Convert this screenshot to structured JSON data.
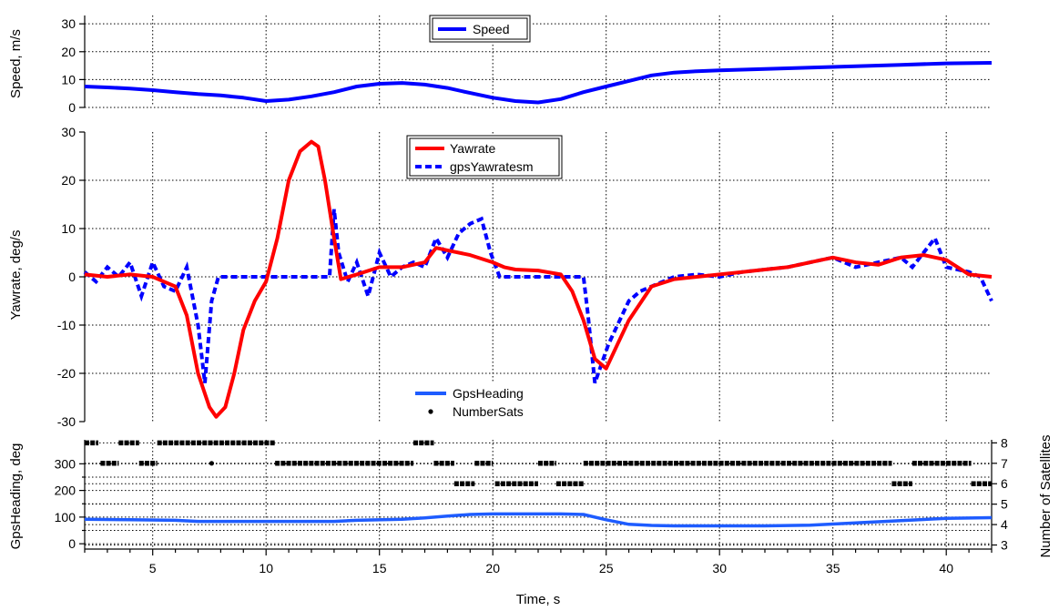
{
  "chart_data": [
    {
      "type": "line",
      "panel": "speed",
      "ylabel": "Speed, m/s",
      "ylim": [
        0,
        33
      ],
      "yticks": [
        0,
        10,
        20,
        30
      ],
      "grid": true,
      "legend_placement": "top-center",
      "series": [
        {
          "name": "Speed",
          "color": "#0000ff",
          "style": "solid",
          "x": [
            2,
            3,
            4,
            5,
            6,
            7,
            8,
            9,
            10,
            11,
            12,
            13,
            14,
            15,
            16,
            17,
            18,
            19,
            20,
            21,
            22,
            23,
            24,
            25,
            26,
            27,
            28,
            29,
            30,
            32,
            34,
            36,
            38,
            40,
            42
          ],
          "y": [
            7.5,
            7.2,
            6.8,
            6.2,
            5.5,
            4.8,
            4.3,
            3.5,
            2.3,
            2.8,
            4,
            5.5,
            7.5,
            8.5,
            8.8,
            8.2,
            7,
            5.2,
            3.5,
            2.3,
            1.8,
            3,
            5.5,
            7.5,
            9.5,
            11.5,
            12.5,
            13,
            13.3,
            13.8,
            14.3,
            14.8,
            15.3,
            15.8,
            16
          ]
        }
      ]
    },
    {
      "type": "line",
      "panel": "yawrate",
      "ylabel": "Yawrate, deg/s",
      "ylim": [
        -30,
        30
      ],
      "yticks": [
        -30,
        -20,
        -10,
        0,
        10,
        20,
        30
      ],
      "grid": true,
      "legend_placement": "top-center",
      "series": [
        {
          "name": "Yawrate",
          "color": "#ff0000",
          "style": "solid",
          "x": [
            2,
            3,
            4,
            5,
            5.5,
            6,
            6.5,
            7,
            7.5,
            7.8,
            8.2,
            8.6,
            9,
            9.5,
            10,
            10.5,
            11,
            11.5,
            12,
            12.3,
            12.6,
            13,
            13.3,
            14,
            15,
            16,
            17,
            17.5,
            18,
            19,
            20,
            20.5,
            21,
            22,
            23,
            23.5,
            24,
            24.5,
            25,
            25.5,
            26,
            27,
            28,
            29,
            30,
            31,
            32,
            33,
            34,
            35,
            36,
            37,
            38,
            39,
            40,
            41,
            42
          ],
          "y": [
            0.5,
            0,
            0.5,
            0,
            -1,
            -2,
            -8,
            -20,
            -27,
            -29,
            -27,
            -20,
            -11,
            -5,
            -1,
            8,
            20,
            26,
            28,
            27,
            20,
            8,
            -0.5,
            0.5,
            2,
            2,
            3,
            6,
            5.5,
            4.5,
            3,
            2,
            1.5,
            1.3,
            0.5,
            -3,
            -9,
            -17,
            -19,
            -14,
            -9,
            -2,
            -0.5,
            0,
            0.5,
            1,
            1.5,
            2,
            3,
            4,
            3,
            2.5,
            4,
            4.5,
            3.5,
            0.5,
            0
          ]
        },
        {
          "name": "gpsYawratesm",
          "color": "#0000ff",
          "style": "dashed",
          "x": [
            2,
            2.5,
            3,
            3.5,
            4,
            4.5,
            5,
            5.5,
            6,
            6.5,
            7,
            7.3,
            7.6,
            7.9,
            8.2,
            9,
            10,
            11,
            12,
            12.8,
            13,
            13.2,
            13.6,
            14,
            14.5,
            15,
            15.5,
            16,
            16.5,
            17,
            17.5,
            18,
            18.5,
            19,
            19.5,
            19.9,
            20.3,
            21,
            22,
            23,
            24,
            24.2,
            24.5,
            24.8,
            25.1,
            25.5,
            26,
            26.5,
            27,
            27.5,
            28,
            29,
            30,
            31,
            32,
            33,
            34,
            35,
            36,
            37,
            38,
            38.5,
            39,
            39.5,
            40,
            41,
            41.5,
            42
          ],
          "y": [
            1,
            -1,
            2,
            0,
            3,
            -4,
            3,
            -2,
            -3,
            2,
            -10,
            -22,
            -5,
            0,
            0,
            0,
            0,
            0,
            0,
            0,
            14,
            5,
            -1,
            3,
            -4,
            5,
            0,
            2,
            3,
            2,
            8,
            4,
            9,
            11,
            12,
            5,
            0,
            0,
            0,
            0,
            0,
            -8,
            -22,
            -18,
            -14,
            -10,
            -5,
            -3,
            -2,
            -1,
            0,
            0.5,
            0,
            1,
            1.5,
            2,
            3,
            4,
            2,
            3,
            4,
            2,
            5,
            8,
            2,
            1,
            0,
            -5
          ]
        }
      ]
    },
    {
      "type": "line",
      "panel": "heading",
      "ylabel": "GpsHeading, deg",
      "xlabel": "Time, s",
      "xlim": [
        2,
        42
      ],
      "xticks": [
        5,
        10,
        15,
        20,
        25,
        30,
        35,
        40
      ],
      "ylim": [
        -20,
        390
      ],
      "yticks": [
        0,
        100,
        200,
        300
      ],
      "y2label": "Number of Satellites",
      "y2lim": [
        2.8,
        8.15
      ],
      "y2ticks": [
        3,
        4,
        5,
        6,
        7,
        8
      ],
      "grid": true,
      "legend_placement": "top-center",
      "series": [
        {
          "name": "GpsHeading",
          "color": "#1e5cff",
          "style": "solid",
          "axis": "left",
          "x": [
            2,
            4,
            6,
            7,
            8,
            10,
            12,
            13,
            14,
            16,
            17,
            18,
            19,
            20,
            22,
            23,
            24,
            25,
            26,
            27,
            28,
            30,
            32,
            34,
            36,
            38,
            40,
            42
          ],
          "y": [
            92,
            90,
            88,
            84,
            84,
            84,
            84,
            84,
            88,
            92,
            97,
            104,
            110,
            112,
            112,
            112,
            110,
            90,
            73,
            69,
            67,
            67,
            67,
            70,
            78,
            87,
            95,
            98
          ]
        },
        {
          "name": "NumberSats",
          "color": "#000000",
          "style": "points",
          "axis": "right",
          "segments": [
            {
              "x": [
                2.0,
                2.6
              ],
              "y": 8
            },
            {
              "x": [
                2.7,
                3.5
              ],
              "y": 7
            },
            {
              "x": [
                3.5,
                4.4
              ],
              "y": 8
            },
            {
              "x": [
                4.4,
                5.2
              ],
              "y": 7
            },
            {
              "x": [
                5.2,
                10.4
              ],
              "y": 8
            },
            {
              "x": [
                7.6,
                7.6
              ],
              "y": 7
            },
            {
              "x": [
                10.4,
                16.5
              ],
              "y": 7
            },
            {
              "x": [
                16.5,
                17.4
              ],
              "y": 8
            },
            {
              "x": [
                17.4,
                18.3
              ],
              "y": 7
            },
            {
              "x": [
                18.3,
                19.2
              ],
              "y": 6
            },
            {
              "x": [
                19.2,
                20.0
              ],
              "y": 7
            },
            {
              "x": [
                20.1,
                22.0
              ],
              "y": 6
            },
            {
              "x": [
                22.0,
                22.8
              ],
              "y": 7
            },
            {
              "x": [
                22.8,
                24.0
              ],
              "y": 6
            },
            {
              "x": [
                24.0,
                37.6
              ],
              "y": 7
            },
            {
              "x": [
                37.6,
                38.5
              ],
              "y": 6
            },
            {
              "x": [
                38.5,
                41.1
              ],
              "y": 7
            },
            {
              "x": [
                41.1,
                42.0
              ],
              "y": 6
            }
          ]
        }
      ]
    }
  ]
}
